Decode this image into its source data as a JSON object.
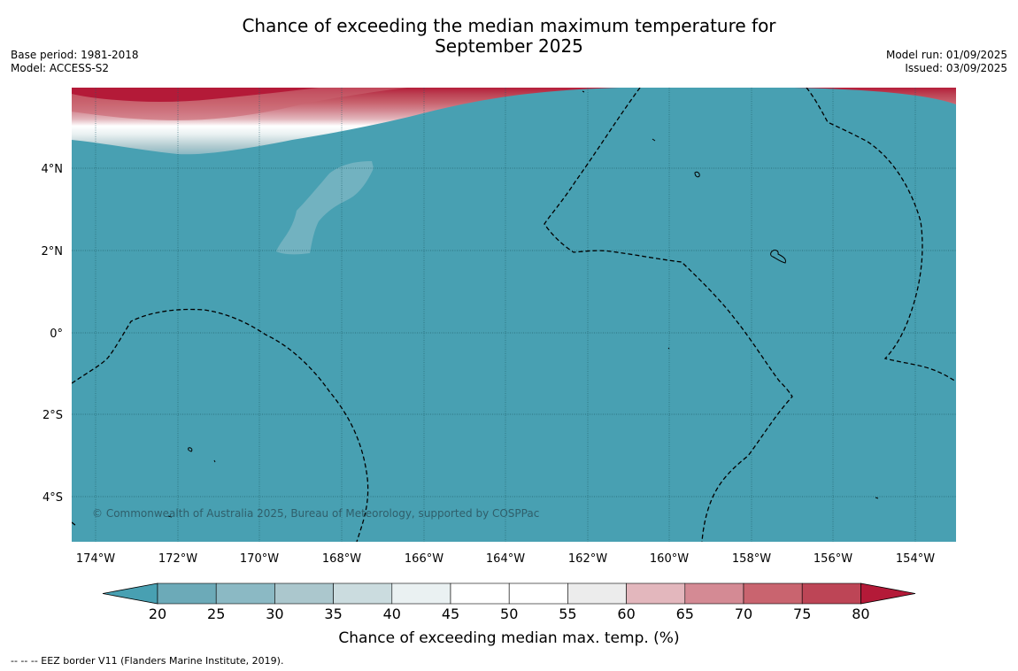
{
  "title_line1": "Chance of exceeding the median maximum temperature for",
  "title_line2": "September 2025",
  "meta_left": {
    "base_period": "Base period: 1981-2018",
    "model": "Model: ACCESS-S2"
  },
  "meta_right": {
    "model_run": "Model run: 01/09/2025",
    "issued": "Issued: 03/09/2025"
  },
  "map": {
    "lon_labels": [
      "174°W",
      "172°W",
      "170°W",
      "168°W",
      "166°W",
      "164°W",
      "162°W",
      "160°W",
      "158°W",
      "156°W",
      "154°W"
    ],
    "lat_labels": [
      "4°N",
      "2°N",
      "0°",
      "2°S",
      "4°S"
    ],
    "copyright": "© Commonwealth of Australia 2025, Bureau of Meteorology, supported by COSPPac",
    "ocean_color": "#48a0b2"
  },
  "colorbar": {
    "ticks": [
      "20",
      "25",
      "30",
      "35",
      "40",
      "45",
      "50",
      "55",
      "60",
      "65",
      "70",
      "75",
      "80"
    ],
    "colors": [
      "#48a0b2",
      "#6caab8",
      "#8bb9c4",
      "#abc7cd",
      "#cbdcdf",
      "#eaf1f2",
      "#ffffff",
      "#ffffff",
      "#ececec",
      "#e3b7bd",
      "#d48a94",
      "#c9646f",
      "#bd4556",
      "#b41a38"
    ],
    "label": "Chance of exceeding median max. temp. (%)"
  },
  "footer": "--  --  -- EEZ border V11 (Flanders Marine Institute, 2019)."
}
